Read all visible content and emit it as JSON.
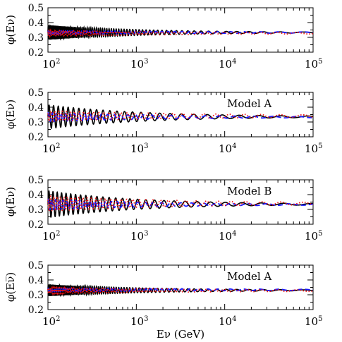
{
  "chart_data": [
    {
      "type": "line",
      "ylabel": "φ(Eν)",
      "ylabel_variant": "neutrino",
      "annotation": "",
      "xscale": "log",
      "xlim": [
        100,
        100000
      ],
      "ylim": [
        0.2,
        0.5
      ],
      "x_ticks": [
        "10",
        "10",
        "10",
        "10"
      ],
      "x_tick_exponents": [
        "2",
        "3",
        "4",
        "5"
      ],
      "y_ticks": [
        "0.5",
        "0.4",
        "0.3",
        "0.2"
      ],
      "series": [
        {
          "style": "solid",
          "color": "#000000",
          "center": 0.333,
          "amp": [
            0.05,
            0.003
          ],
          "period": [
            0.012,
            0.33
          ]
        },
        {
          "style": "dashed",
          "color": "#1a1aff",
          "center": 0.333,
          "amp": [
            0.012,
            0.004
          ],
          "period": [
            0.02,
            0.35
          ]
        },
        {
          "style": "dotted",
          "color": "#ee1111",
          "center": 0.328,
          "amp": [
            0.018,
            0.005
          ],
          "period": [
            0.016,
            0.3
          ]
        }
      ]
    },
    {
      "type": "line",
      "ylabel": "φ(Eν)",
      "ylabel_variant": "neutrino",
      "annotation": "Model A",
      "xscale": "log",
      "xlim": [
        100,
        100000
      ],
      "ylim": [
        0.2,
        0.5
      ],
      "x_ticks": [
        "10",
        "10",
        "10",
        "10"
      ],
      "x_tick_exponents": [
        "2",
        "3",
        "4",
        "5"
      ],
      "y_ticks": [
        "0.5",
        "0.4",
        "0.3",
        "0.2"
      ],
      "series": [
        {
          "style": "solid",
          "color": "#000000",
          "center": 0.335,
          "amp": [
            0.08,
            0.005
          ],
          "period": [
            0.05,
            0.35
          ]
        },
        {
          "style": "dashed",
          "color": "#1a1aff",
          "center": 0.333,
          "amp": [
            0.03,
            0.004
          ],
          "period": [
            0.045,
            0.34
          ]
        },
        {
          "style": "dotted",
          "color": "#ee1111",
          "center": 0.34,
          "amp": [
            0.035,
            0.008
          ],
          "period": [
            0.04,
            0.3
          ]
        }
      ]
    },
    {
      "type": "line",
      "ylabel": "φ(Eν)",
      "ylabel_variant": "neutrino",
      "annotation": "Model B",
      "xscale": "log",
      "xlim": [
        100,
        100000
      ],
      "ylim": [
        0.2,
        0.5
      ],
      "x_ticks": [
        "10",
        "10",
        "10",
        "10"
      ],
      "x_tick_exponents": [
        "2",
        "3",
        "4",
        "5"
      ],
      "y_ticks": [
        "0.5",
        "0.4",
        "0.3",
        "0.2"
      ],
      "series": [
        {
          "style": "solid",
          "color": "#000000",
          "center": 0.335,
          "amp": [
            0.09,
            0.005
          ],
          "period": [
            0.045,
            0.35
          ]
        },
        {
          "style": "dashed",
          "color": "#1a1aff",
          "center": 0.333,
          "amp": [
            0.035,
            0.004
          ],
          "period": [
            0.04,
            0.34
          ]
        },
        {
          "style": "dotted",
          "color": "#ee1111",
          "center": 0.34,
          "amp": [
            0.05,
            0.008
          ],
          "period": [
            0.035,
            0.3
          ]
        }
      ]
    },
    {
      "type": "line",
      "ylabel": "φ(Eν̅)",
      "ylabel_variant": "antineutrino",
      "annotation": "Model A",
      "xlabel": "Eν (GeV)",
      "xscale": "log",
      "xlim": [
        100,
        100000
      ],
      "ylim": [
        0.2,
        0.5
      ],
      "x_ticks": [
        "10",
        "10",
        "10",
        "10"
      ],
      "x_tick_exponents": [
        "2",
        "3",
        "4",
        "5"
      ],
      "y_ticks": [
        "0.5",
        "0.4",
        "0.3",
        "0.2"
      ],
      "series": [
        {
          "style": "solid",
          "color": "#000000",
          "center": 0.33,
          "amp": [
            0.04,
            0.003
          ],
          "period": [
            0.012,
            0.33
          ]
        },
        {
          "style": "dashed",
          "color": "#1a1aff",
          "center": 0.333,
          "amp": [
            0.012,
            0.004
          ],
          "period": [
            0.02,
            0.35
          ]
        },
        {
          "style": "dotted",
          "color": "#ee1111",
          "center": 0.328,
          "amp": [
            0.02,
            0.005
          ],
          "period": [
            0.016,
            0.3
          ]
        }
      ]
    }
  ]
}
